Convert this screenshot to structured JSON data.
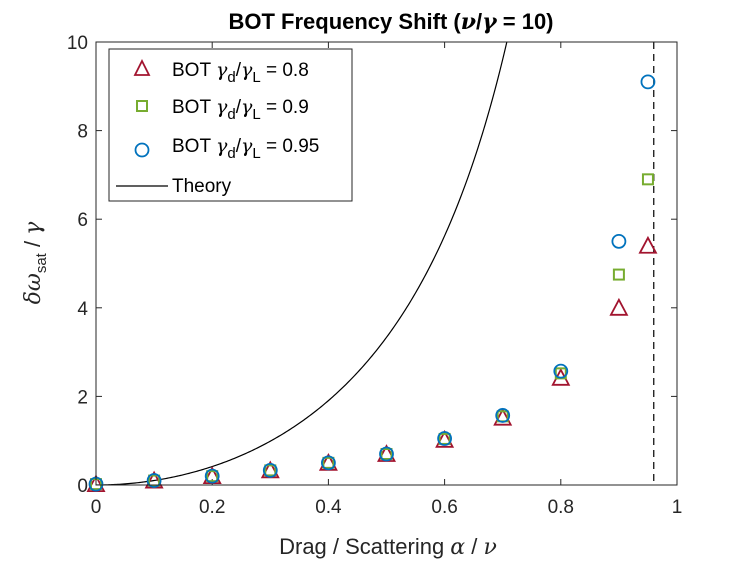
{
  "chart_data": {
    "type": "scatter",
    "title_prefix": "BOT Frequency Shift (",
    "title_nu": "ν",
    "title_slash": "/",
    "title_gamma": "γ",
    "title_suffix": " = 10)",
    "xlabel_text": "Drag / Scattering ",
    "xlabel_alpha": "α",
    "xlabel_slash": " / ",
    "xlabel_nu": "ν",
    "ylabel_delta_omega": "δω",
    "ylabel_sub": "sat",
    "ylabel_slash": " / ",
    "ylabel_gamma": "γ",
    "xlim": [
      0,
      1
    ],
    "ylim": [
      0,
      10
    ],
    "xticks": [
      0,
      0.2,
      0.4,
      0.6,
      0.8,
      1
    ],
    "xtick_labels": [
      "0",
      "0.2",
      "0.4",
      "0.6",
      "0.8",
      "1"
    ],
    "yticks": [
      0,
      2,
      4,
      6,
      8,
      10
    ],
    "ytick_labels": [
      "0",
      "2",
      "4",
      "6",
      "8",
      "10"
    ],
    "asymptote_x": 0.96,
    "legend_position": "top-left",
    "series": [
      {
        "name": "BOT γd/γL = 0.8",
        "legend_prefix": "BOT ",
        "legend_ratio": "0.8",
        "marker": "triangle",
        "color": "#A2142F",
        "x": [
          0,
          0.1,
          0.2,
          0.3,
          0.4,
          0.5,
          0.6,
          0.7,
          0.8,
          0.9,
          0.95
        ],
        "y": [
          0.02,
          0.1,
          0.2,
          0.33,
          0.5,
          0.7,
          1.02,
          1.52,
          2.42,
          4.0,
          5.4
        ]
      },
      {
        "name": "BOT γd/γL = 0.9",
        "legend_prefix": "BOT ",
        "legend_ratio": "0.9",
        "marker": "square",
        "color": "#77AC30",
        "x": [
          0,
          0.1,
          0.2,
          0.3,
          0.4,
          0.5,
          0.6,
          0.7,
          0.8,
          0.9,
          0.95
        ],
        "y": [
          0.02,
          0.1,
          0.2,
          0.33,
          0.5,
          0.7,
          1.04,
          1.55,
          2.52,
          4.75,
          6.9
        ]
      },
      {
        "name": "BOT γd/γL = 0.95",
        "legend_prefix": "BOT ",
        "legend_ratio": "0.95",
        "marker": "circle",
        "color": "#0072BD",
        "x": [
          0,
          0.1,
          0.2,
          0.3,
          0.4,
          0.5,
          0.6,
          0.7,
          0.8,
          0.9,
          0.95
        ],
        "y": [
          0.02,
          0.1,
          0.2,
          0.33,
          0.5,
          0.7,
          1.05,
          1.57,
          2.57,
          5.5,
          9.1
        ]
      },
      {
        "name": "Theory",
        "legend_text": "Theory",
        "marker": "line",
        "color": "#000000",
        "formula": "y = 10 * x^2 / (1 - x^2)"
      }
    ],
    "legend_gamma": "γ",
    "legend_sub_d": "d",
    "legend_slash": "/",
    "legend_sub_L": "L",
    "legend_eq": " = "
  }
}
